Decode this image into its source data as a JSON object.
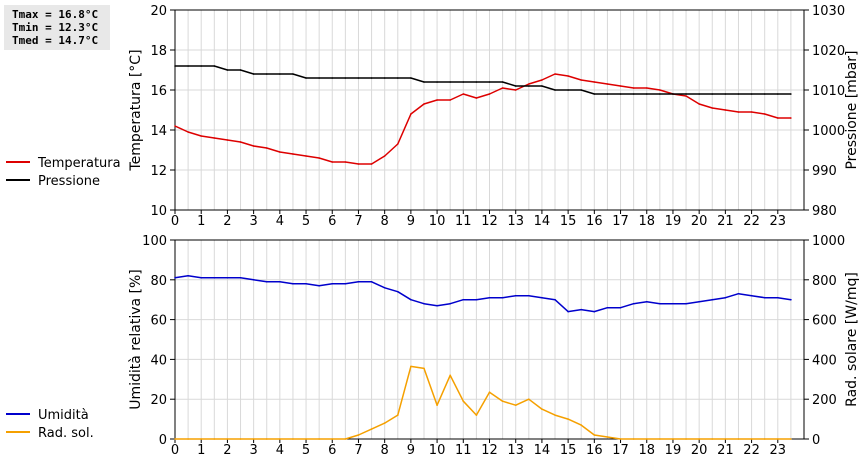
{
  "stats": {
    "tmax": "Tmax = 16.8°C",
    "tmin": "Tmin = 12.3°C",
    "tmed": "Tmed = 14.7°C"
  },
  "chart_data": [
    {
      "type": "line",
      "ylabel": "Temperatura [°C]",
      "y2label": "Pressione [mbar]",
      "xlim": [
        0,
        24
      ],
      "xticks": [
        0,
        1,
        2,
        3,
        4,
        5,
        6,
        7,
        8,
        9,
        10,
        11,
        12,
        13,
        14,
        15,
        16,
        17,
        18,
        19,
        20,
        21,
        22,
        23
      ],
      "ylim": [
        10,
        20
      ],
      "yticks": [
        10,
        12,
        14,
        16,
        18,
        20
      ],
      "y2lim": [
        980,
        1030
      ],
      "y2ticks": [
        980,
        990,
        1000,
        1010,
        1020,
        1030
      ],
      "grid": true,
      "legend_placement": "left",
      "series": [
        {
          "name": "Temperatura",
          "axis": "left",
          "color": "#dd0000",
          "x": [
            0,
            0.5,
            1,
            1.5,
            2,
            2.5,
            3,
            3.5,
            4,
            4.5,
            5,
            5.5,
            6,
            6.5,
            7,
            7.5,
            8,
            8.5,
            9,
            9.5,
            10,
            10.5,
            11,
            11.5,
            12,
            12.5,
            13,
            13.5,
            14,
            14.5,
            15,
            15.5,
            16,
            16.5,
            17,
            17.5,
            18,
            18.5,
            19,
            19.5,
            20,
            20.5,
            21,
            21.5,
            22,
            22.5,
            23,
            23.5
          ],
          "values": [
            14.2,
            13.9,
            13.7,
            13.6,
            13.5,
            13.4,
            13.2,
            13.1,
            12.9,
            12.8,
            12.7,
            12.6,
            12.4,
            12.4,
            12.3,
            12.3,
            12.7,
            13.3,
            14.8,
            15.3,
            15.5,
            15.5,
            15.8,
            15.6,
            15.8,
            16.1,
            16.0,
            16.3,
            16.5,
            16.8,
            16.7,
            16.5,
            16.4,
            16.3,
            16.2,
            16.1,
            16.1,
            16.0,
            15.8,
            15.7,
            15.3,
            15.1,
            15.0,
            14.9,
            14.9,
            14.8,
            14.6,
            14.6
          ]
        },
        {
          "name": "Pressione",
          "axis": "right",
          "color": "#000000",
          "x": [
            0,
            0.5,
            1,
            1.5,
            2,
            2.5,
            3,
            3.5,
            4,
            4.5,
            5,
            5.5,
            6,
            6.5,
            7,
            7.5,
            8,
            8.5,
            9,
            9.5,
            10,
            10.5,
            11,
            11.5,
            12,
            12.5,
            13,
            13.5,
            14,
            14.5,
            15,
            15.5,
            16,
            16.5,
            17,
            17.5,
            18,
            18.5,
            19,
            19.5,
            20,
            20.5,
            21,
            21.5,
            22,
            22.5,
            23,
            23.5
          ],
          "values": [
            1016,
            1016,
            1016,
            1016,
            1015,
            1015,
            1014,
            1014,
            1014,
            1014,
            1013,
            1013,
            1013,
            1013,
            1013,
            1013,
            1013,
            1013,
            1013,
            1012,
            1012,
            1012,
            1012,
            1012,
            1012,
            1012,
            1011,
            1011,
            1011,
            1010,
            1010,
            1010,
            1009,
            1009,
            1009,
            1009,
            1009,
            1009,
            1009,
            1009,
            1009,
            1009,
            1009,
            1009,
            1009,
            1009,
            1009,
            1009
          ]
        }
      ]
    },
    {
      "type": "line",
      "ylabel": "Umidità relativa [%]",
      "y2label": "Rad. solare [W/mq]",
      "xlim": [
        0,
        24
      ],
      "xticks": [
        0,
        1,
        2,
        3,
        4,
        5,
        6,
        7,
        8,
        9,
        10,
        11,
        12,
        13,
        14,
        15,
        16,
        17,
        18,
        19,
        20,
        21,
        22,
        23
      ],
      "ylim": [
        0,
        100
      ],
      "yticks": [
        0,
        20,
        40,
        60,
        80,
        100
      ],
      "y2lim": [
        0,
        1000
      ],
      "y2ticks": [
        0,
        200,
        400,
        600,
        800,
        1000
      ],
      "grid": true,
      "legend_placement": "left",
      "series": [
        {
          "name": "Umidità",
          "axis": "left",
          "color": "#0000cc",
          "x": [
            0,
            0.5,
            1,
            1.5,
            2,
            2.5,
            3,
            3.5,
            4,
            4.5,
            5,
            5.5,
            6,
            6.5,
            7,
            7.5,
            8,
            8.5,
            9,
            9.5,
            10,
            10.5,
            11,
            11.5,
            12,
            12.5,
            13,
            13.5,
            14,
            14.5,
            15,
            15.5,
            16,
            16.5,
            17,
            17.5,
            18,
            18.5,
            19,
            19.5,
            20,
            20.5,
            21,
            21.5,
            22,
            22.5,
            23,
            23.5
          ],
          "values": [
            81,
            82,
            81,
            81,
            81,
            81,
            80,
            79,
            79,
            78,
            78,
            77,
            78,
            78,
            79,
            79,
            76,
            74,
            70,
            68,
            67,
            68,
            70,
            70,
            71,
            71,
            72,
            72,
            71,
            70,
            64,
            65,
            64,
            66,
            66,
            68,
            69,
            68,
            68,
            68,
            69,
            70,
            71,
            73,
            72,
            71,
            71,
            70
          ]
        },
        {
          "name": "Rad. sol.",
          "axis": "right",
          "color": "#f5a000",
          "x": [
            0,
            0.5,
            1,
            1.5,
            2,
            2.5,
            3,
            3.5,
            4,
            4.5,
            5,
            5.5,
            6,
            6.5,
            7,
            7.5,
            8,
            8.5,
            9,
            9.5,
            10,
            10.5,
            11,
            11.5,
            12,
            12.5,
            13,
            13.5,
            14,
            14.5,
            15,
            15.5,
            16,
            16.5,
            17,
            17.5,
            18,
            18.5,
            19,
            19.5,
            20,
            20.5,
            21,
            21.5,
            22,
            22.5,
            23,
            23.5
          ],
          "values": [
            0,
            0,
            0,
            0,
            0,
            0,
            0,
            0,
            0,
            0,
            0,
            0,
            0,
            0,
            20,
            50,
            80,
            120,
            365,
            355,
            170,
            320,
            190,
            120,
            235,
            190,
            170,
            200,
            150,
            120,
            100,
            70,
            20,
            10,
            0,
            0,
            0,
            0,
            0,
            0,
            0,
            0,
            0,
            0,
            0,
            0,
            0,
            0
          ]
        }
      ]
    }
  ]
}
